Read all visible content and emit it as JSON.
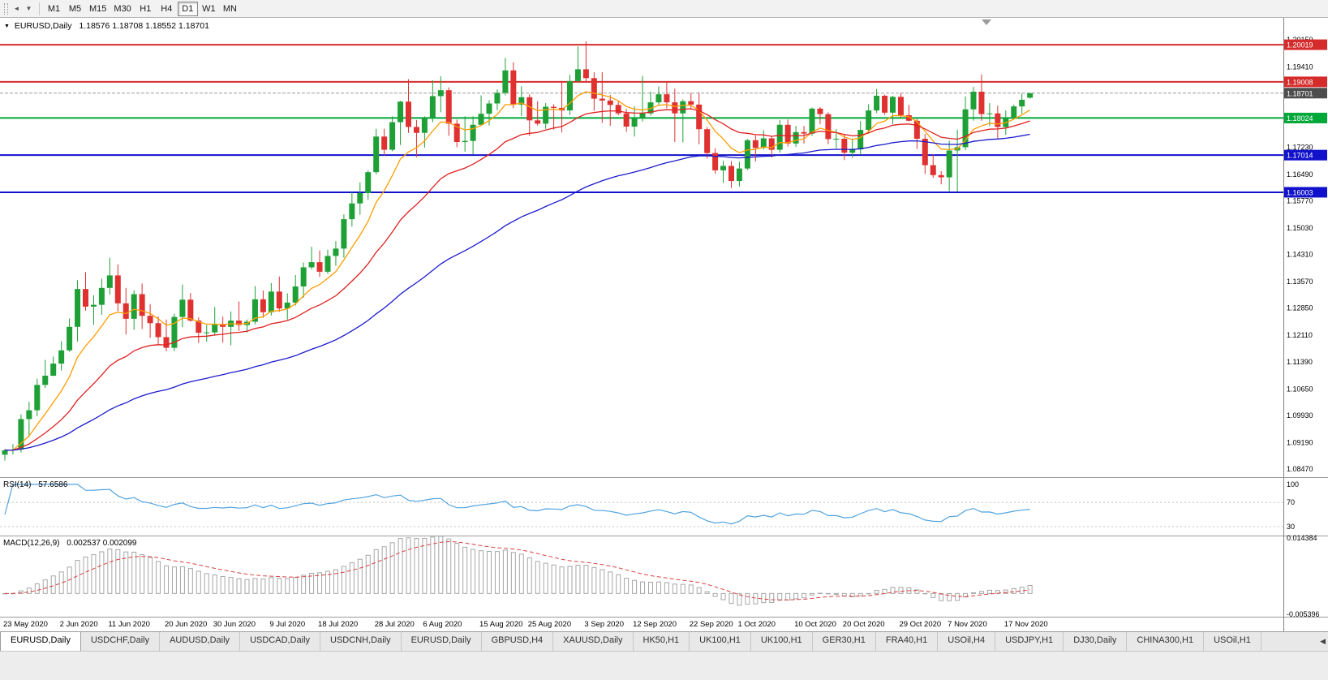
{
  "icons": {
    "chart_menu": "▼",
    "scroll_back": "◄",
    "dropdown": "▼",
    "tab_scroll": "◀"
  },
  "toolbar": {
    "timeframes": [
      {
        "label": "M1",
        "active": false
      },
      {
        "label": "M5",
        "active": false
      },
      {
        "label": "M15",
        "active": false
      },
      {
        "label": "M30",
        "active": false
      },
      {
        "label": "H1",
        "active": false
      },
      {
        "label": "H4",
        "active": false
      },
      {
        "label": "D1",
        "active": true
      },
      {
        "label": "W1",
        "active": false
      },
      {
        "label": "MN",
        "active": false
      }
    ]
  },
  "chart": {
    "symbol": "EURUSD,Daily",
    "ohlc_text": "1.18576 1.18708 1.18552 1.18701"
  },
  "panels": {
    "rsi": {
      "label": "RSI(14)",
      "value": "57.6586"
    },
    "macd": {
      "label": "MACD(12,26,9)",
      "values": "0.002537 0.002099"
    }
  },
  "chart_data": {
    "type": "candlestick",
    "title": "EURUSD,Daily",
    "symbol": "EURUSD",
    "timeframe": "Daily",
    "ylim": [
      1.0825,
      1.2075
    ],
    "price_ticks": [
      "1.20150",
      "1.19410",
      "1.18690",
      "1.17950",
      "1.17230",
      "1.16490",
      "1.15770",
      "1.15030",
      "1.14310",
      "1.13570",
      "1.12850",
      "1.12110",
      "1.11390",
      "1.10650",
      "1.09930",
      "1.09190",
      "1.08470"
    ],
    "hlines": [
      {
        "price": 1.20019,
        "label": "1.20019",
        "color": "#d62b2b"
      },
      {
        "price": 1.19008,
        "label": "1.19008",
        "color": "#d62b2b"
      },
      {
        "price": 1.18024,
        "label": "1.18024",
        "color": "#00a83a"
      },
      {
        "price": 1.17014,
        "label": "1.17014",
        "color": "#1111cc"
      },
      {
        "price": 1.16003,
        "label": "1.16003",
        "color": "#1111cc"
      }
    ],
    "current_price": {
      "value": 1.18701,
      "label": "1.18701",
      "badge_color": "#4d4d4d"
    },
    "moving_averages": [
      {
        "name": "ma-fast",
        "period": 8,
        "color": "#ff9d00"
      },
      {
        "name": "ma-mid",
        "period": 21,
        "color": "#e02020"
      },
      {
        "name": "ma-slow",
        "period": 55,
        "color": "#1a1acd"
      }
    ],
    "colors": {
      "up": "#1fa037",
      "down": "#e03131",
      "rsi_line": "#52a3e0",
      "macd_hist": "#a6a6a6",
      "macd_signal": "#d94040"
    },
    "rsi_panel": {
      "ylim": [
        15,
        112
      ],
      "levels": [
        70,
        30
      ],
      "axis_labels": [
        "100",
        "70",
        "30"
      ],
      "axis_values": [
        100,
        70,
        30
      ],
      "period": 14
    },
    "macd_panel": {
      "ylim": [
        -0.00603,
        0.01502
      ],
      "axis_labels": [
        "0.014384",
        "-0.005396"
      ],
      "axis_values": [
        0.014384,
        -0.005396
      ],
      "fast": 12,
      "slow": 26,
      "signal": 9
    },
    "date_labels": [
      {
        "label": "23 May 2020",
        "index": 0
      },
      {
        "label": "2 Jun 2020",
        "index": 7
      },
      {
        "label": "11 Jun 2020",
        "index": 13
      },
      {
        "label": "20 Jun 2020",
        "index": 20
      },
      {
        "label": "30 Jun 2020",
        "index": 26
      },
      {
        "label": "9 Jul 2020",
        "index": 33
      },
      {
        "label": "18 Jul 2020",
        "index": 39
      },
      {
        "label": "28 Jul 2020",
        "index": 46
      },
      {
        "label": "6 Aug 2020",
        "index": 52
      },
      {
        "label": "15 Aug 2020",
        "index": 59
      },
      {
        "label": "25 Aug 2020",
        "index": 65
      },
      {
        "label": "3 Sep 2020",
        "index": 72
      },
      {
        "label": "12 Sep 2020",
        "index": 78
      },
      {
        "label": "22 Sep 2020",
        "index": 85
      },
      {
        "label": "1 Oct 2020",
        "index": 91
      },
      {
        "label": "10 Oct 2020",
        "index": 98
      },
      {
        "label": "20 Oct 2020",
        "index": 104
      },
      {
        "label": "29 Oct 2020",
        "index": 111
      },
      {
        "label": "7 Nov 2020",
        "index": 117
      },
      {
        "label": "17 Nov 2020",
        "index": 124
      }
    ],
    "candles": [
      [
        1.0886,
        1.0902,
        1.087,
        1.0898
      ],
      [
        1.0898,
        1.0915,
        1.0887,
        1.09
      ],
      [
        1.09,
        1.0996,
        1.0892,
        1.0983
      ],
      [
        1.0983,
        1.103,
        1.0934,
        1.1007
      ],
      [
        1.1007,
        1.1093,
        1.0991,
        1.1076
      ],
      [
        1.1076,
        1.1144,
        1.1068,
        1.1101
      ],
      [
        1.1101,
        1.1153,
        1.11,
        1.1134
      ],
      [
        1.1134,
        1.1195,
        1.1115,
        1.117
      ],
      [
        1.117,
        1.1257,
        1.1166,
        1.1234
      ],
      [
        1.1234,
        1.1361,
        1.1194,
        1.1337
      ],
      [
        1.1337,
        1.1383,
        1.1278,
        1.1289
      ],
      [
        1.1289,
        1.132,
        1.124,
        1.1294
      ],
      [
        1.1294,
        1.1365,
        1.1267,
        1.134
      ],
      [
        1.134,
        1.1422,
        1.1322,
        1.1374
      ],
      [
        1.1374,
        1.1404,
        1.1277,
        1.1298
      ],
      [
        1.1298,
        1.134,
        1.1213,
        1.1256
      ],
      [
        1.1256,
        1.1333,
        1.1226,
        1.1323
      ],
      [
        1.1323,
        1.1352,
        1.1228,
        1.1264
      ],
      [
        1.1264,
        1.1296,
        1.1204,
        1.1244
      ],
      [
        1.1244,
        1.1262,
        1.1185,
        1.1206
      ],
      [
        1.1206,
        1.1254,
        1.1168,
        1.1177
      ],
      [
        1.1177,
        1.127,
        1.1168,
        1.1261
      ],
      [
        1.1261,
        1.1349,
        1.1233,
        1.1308
      ],
      [
        1.1308,
        1.1326,
        1.1248,
        1.1251
      ],
      [
        1.1251,
        1.126,
        1.119,
        1.1218
      ],
      [
        1.1218,
        1.1239,
        1.1194,
        1.1219
      ],
      [
        1.1219,
        1.1288,
        1.121,
        1.1242
      ],
      [
        1.1242,
        1.1262,
        1.1191,
        1.1234
      ],
      [
        1.1234,
        1.1276,
        1.1184,
        1.1251
      ],
      [
        1.1251,
        1.1303,
        1.1223,
        1.1239
      ],
      [
        1.1239,
        1.1254,
        1.1219,
        1.1248
      ],
      [
        1.1248,
        1.1345,
        1.1241,
        1.1309
      ],
      [
        1.1309,
        1.1333,
        1.1259,
        1.1274
      ],
      [
        1.1274,
        1.1353,
        1.1265,
        1.133
      ],
      [
        1.133,
        1.1371,
        1.1275,
        1.1284
      ],
      [
        1.1284,
        1.1325,
        1.1254,
        1.13
      ],
      [
        1.13,
        1.1375,
        1.1292,
        1.1344
      ],
      [
        1.1344,
        1.1409,
        1.1313,
        1.1396
      ],
      [
        1.1396,
        1.1452,
        1.139,
        1.141
      ],
      [
        1.141,
        1.1442,
        1.137,
        1.1384
      ],
      [
        1.1384,
        1.1444,
        1.1378,
        1.1427
      ],
      [
        1.1427,
        1.1467,
        1.14,
        1.1447
      ],
      [
        1.1447,
        1.154,
        1.1422,
        1.1527
      ],
      [
        1.1527,
        1.1601,
        1.1507,
        1.157
      ],
      [
        1.157,
        1.1627,
        1.1539,
        1.1598
      ],
      [
        1.1598,
        1.166,
        1.158,
        1.1655
      ],
      [
        1.1655,
        1.1773,
        1.1649,
        1.1752
      ],
      [
        1.1752,
        1.1773,
        1.17,
        1.1716
      ],
      [
        1.1716,
        1.1807,
        1.1712,
        1.1791
      ],
      [
        1.1791,
        1.1849,
        1.1729,
        1.1847
      ],
      [
        1.1847,
        1.1908,
        1.1762,
        1.1778
      ],
      [
        1.1778,
        1.1797,
        1.1696,
        1.1762
      ],
      [
        1.1762,
        1.1807,
        1.1722,
        1.1803
      ],
      [
        1.1803,
        1.1905,
        1.1791,
        1.1862
      ],
      [
        1.1862,
        1.1916,
        1.1818,
        1.1878
      ],
      [
        1.1878,
        1.1886,
        1.1754,
        1.1787
      ],
      [
        1.1787,
        1.1798,
        1.1723,
        1.1737
      ],
      [
        1.1737,
        1.1807,
        1.1711,
        1.174
      ],
      [
        1.174,
        1.1807,
        1.1704,
        1.1784
      ],
      [
        1.1784,
        1.1864,
        1.1781,
        1.1814
      ],
      [
        1.1814,
        1.1851,
        1.1782,
        1.1842
      ],
      [
        1.1842,
        1.188,
        1.1824,
        1.1871
      ],
      [
        1.1871,
        1.1966,
        1.1864,
        1.1932
      ],
      [
        1.1932,
        1.1954,
        1.1829,
        1.1839
      ],
      [
        1.1839,
        1.1889,
        1.1808,
        1.1859
      ],
      [
        1.1859,
        1.1867,
        1.1754,
        1.1796
      ],
      [
        1.1796,
        1.1848,
        1.1782,
        1.1787
      ],
      [
        1.1787,
        1.1843,
        1.1773,
        1.1833
      ],
      [
        1.1833,
        1.184,
        1.1771,
        1.183
      ],
      [
        1.183,
        1.19,
        1.1763,
        1.1823
      ],
      [
        1.1823,
        1.192,
        1.181,
        1.1903
      ],
      [
        1.1903,
        1.1997,
        1.1899,
        1.1935
      ],
      [
        1.1935,
        1.2011,
        1.1898,
        1.1911
      ],
      [
        1.1911,
        1.1927,
        1.1822,
        1.1855
      ],
      [
        1.1855,
        1.1927,
        1.1789,
        1.185
      ],
      [
        1.185,
        1.1865,
        1.1781,
        1.1838
      ],
      [
        1.1838,
        1.1849,
        1.181,
        1.1815
      ],
      [
        1.1815,
        1.1827,
        1.1765,
        1.1779
      ],
      [
        1.1779,
        1.1834,
        1.1752,
        1.1801
      ],
      [
        1.1801,
        1.1917,
        1.1793,
        1.1815
      ],
      [
        1.1815,
        1.1874,
        1.1809,
        1.1845
      ],
      [
        1.1845,
        1.1888,
        1.1839,
        1.1867
      ],
      [
        1.1867,
        1.19,
        1.1829,
        1.1845
      ],
      [
        1.1845,
        1.1882,
        1.1737,
        1.1815
      ],
      [
        1.1815,
        1.1853,
        1.1736,
        1.1848
      ],
      [
        1.1848,
        1.1871,
        1.1826,
        1.1839
      ],
      [
        1.1839,
        1.1872,
        1.1731,
        1.1772
      ],
      [
        1.1772,
        1.1778,
        1.1692,
        1.1707
      ],
      [
        1.1707,
        1.172,
        1.1651,
        1.166
      ],
      [
        1.166,
        1.1686,
        1.1626,
        1.1672
      ],
      [
        1.1672,
        1.1685,
        1.1612,
        1.1631
      ],
      [
        1.1631,
        1.1683,
        1.1616,
        1.1665
      ],
      [
        1.1665,
        1.1745,
        1.1661,
        1.1742
      ],
      [
        1.1742,
        1.1755,
        1.1684,
        1.1721
      ],
      [
        1.1721,
        1.1769,
        1.1717,
        1.1747
      ],
      [
        1.1747,
        1.1752,
        1.1695,
        1.1716
      ],
      [
        1.1716,
        1.1797,
        1.1708,
        1.1784
      ],
      [
        1.1784,
        1.1798,
        1.1725,
        1.1733
      ],
      [
        1.1733,
        1.1781,
        1.1724,
        1.1764
      ],
      [
        1.1764,
        1.1781,
        1.1733,
        1.176
      ],
      [
        1.176,
        1.1831,
        1.1754,
        1.1828
      ],
      [
        1.1828,
        1.1832,
        1.1786,
        1.1813
      ],
      [
        1.1813,
        1.1818,
        1.1731,
        1.1745
      ],
      [
        1.1745,
        1.1772,
        1.172,
        1.1746
      ],
      [
        1.1746,
        1.1758,
        1.1688,
        1.1708
      ],
      [
        1.1708,
        1.1747,
        1.1694,
        1.1717
      ],
      [
        1.1717,
        1.1794,
        1.1702,
        1.177
      ],
      [
        1.177,
        1.184,
        1.176,
        1.1823
      ],
      [
        1.1823,
        1.1881,
        1.1816,
        1.1863
      ],
      [
        1.1863,
        1.1866,
        1.1811,
        1.1817
      ],
      [
        1.1817,
        1.1863,
        1.1786,
        1.186
      ],
      [
        1.186,
        1.187,
        1.1803,
        1.181
      ],
      [
        1.181,
        1.1838,
        1.1793,
        1.1795
      ],
      [
        1.1795,
        1.18,
        1.1718,
        1.1746
      ],
      [
        1.1746,
        1.1759,
        1.165,
        1.1674
      ],
      [
        1.1674,
        1.1704,
        1.164,
        1.1647
      ],
      [
        1.1647,
        1.1658,
        1.1622,
        1.1641
      ],
      [
        1.1641,
        1.1741,
        1.1603,
        1.1714
      ],
      [
        1.1714,
        1.1771,
        1.1602,
        1.1723
      ],
      [
        1.1723,
        1.1861,
        1.1715,
        1.1826
      ],
      [
        1.1826,
        1.1887,
        1.1795,
        1.1874
      ],
      [
        1.1874,
        1.1921,
        1.1795,
        1.1813
      ],
      [
        1.1813,
        1.1843,
        1.178,
        1.1815
      ],
      [
        1.1815,
        1.1836,
        1.1745,
        1.1778
      ],
      [
        1.1778,
        1.1823,
        1.1757,
        1.1801
      ],
      [
        1.1801,
        1.1839,
        1.1799,
        1.1834
      ],
      [
        1.1834,
        1.1869,
        1.1814,
        1.1852
      ],
      [
        1.18576,
        1.18708,
        1.18552,
        1.18701
      ]
    ]
  },
  "tabs": [
    {
      "label": "EURUSD,Daily",
      "active": true
    },
    {
      "label": "USDCHF,Daily",
      "active": false
    },
    {
      "label": "AUDUSD,Daily",
      "active": false
    },
    {
      "label": "USDCAD,Daily",
      "active": false
    },
    {
      "label": "USDCNH,Daily",
      "active": false
    },
    {
      "label": "EURUSD,Daily",
      "active": false
    },
    {
      "label": "GBPUSD,H4",
      "active": false
    },
    {
      "label": "XAUUSD,Daily",
      "active": false
    },
    {
      "label": "HK50,H1",
      "active": false
    },
    {
      "label": "UK100,H1",
      "active": false
    },
    {
      "label": "UK100,H1",
      "active": false
    },
    {
      "label": "GER30,H1",
      "active": false
    },
    {
      "label": "FRA40,H1",
      "active": false
    },
    {
      "label": "USOil,H4",
      "active": false
    },
    {
      "label": "USDJPY,H1",
      "active": false
    },
    {
      "label": "DJ30,Daily",
      "active": false
    },
    {
      "label": "CHINA300,H1",
      "active": false
    },
    {
      "label": "USOil,H1",
      "active": false
    }
  ]
}
